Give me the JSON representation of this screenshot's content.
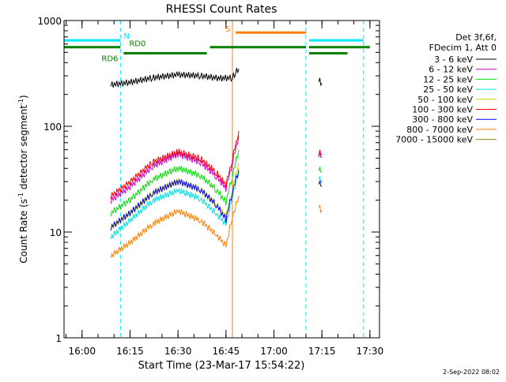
{
  "chart_data": {
    "type": "line",
    "title": "RHESSI Count Rates",
    "xlabel": "Start Time (23-Mar-17 15:54:22)",
    "ylabel": "Count Rate (s⁻¹ detector segment⁻¹)",
    "ylabel_main": "Count Rate (s",
    "ylabel_sup1": "-1",
    "ylabel_mid": " detector segment",
    "ylabel_sup2": "-1",
    "ylabel_end": ")",
    "y_scale": "log",
    "ylim": [
      1,
      1000
    ],
    "xlim": [
      "15:54:22",
      "17:33:00"
    ],
    "x_ticks": [
      "16:00",
      "16:15",
      "16:30",
      "16:45",
      "17:00",
      "17:15",
      "17:30"
    ],
    "y_ticks": [
      "1",
      "10",
      "100",
      "1000"
    ],
    "legend_header": [
      "Det 3f,6f,",
      "FDecim 1, Att 0"
    ],
    "legend_position": "right",
    "footer": "2-Sep-2022 08:02",
    "series": [
      {
        "name": "3 - 6 keV",
        "color": "#000000",
        "x": [
          "16:09",
          "16:15",
          "16:22",
          "16:30",
          "16:37",
          "16:43",
          "16:47",
          "16:48",
          "16:49",
          "17:14",
          "17:15"
        ],
        "y": [
          245,
          258,
          285,
          305,
          298,
          282,
          285,
          320,
          350,
          270,
          255
        ]
      },
      {
        "name": "6 - 12 keV",
        "color": "#d000d0",
        "x": [
          "16:09",
          "16:15",
          "16:22",
          "16:30",
          "16:37",
          "16:42",
          "16:45",
          "16:47",
          "16:49",
          "17:14",
          "17:15"
        ],
        "y": [
          20,
          27,
          42,
          55,
          46,
          34,
          26,
          46,
          82,
          55,
          52
        ]
      },
      {
        "name": "12 - 25 keV",
        "color": "#00e000",
        "x": [
          "16:09",
          "16:15",
          "16:22",
          "16:30",
          "16:37",
          "16:42",
          "16:45",
          "16:47",
          "16:49",
          "17:14",
          "17:15"
        ],
        "y": [
          15,
          20,
          31,
          40,
          34,
          25,
          19,
          34,
          60,
          40,
          37
        ]
      },
      {
        "name": "25 - 50 keV",
        "color": "#00e0e0",
        "x": [
          "16:09",
          "16:15",
          "16:22",
          "16:30",
          "16:37",
          "16:42",
          "16:45",
          "16:47",
          "16:49",
          "17:14",
          "17:15"
        ],
        "y": [
          9,
          13,
          20,
          25,
          21,
          15,
          12,
          22,
          40,
          33,
          31
        ]
      },
      {
        "name": "50 - 100 keV",
        "color": "#d0d000",
        "x": [
          "16:09",
          "16:15",
          "16:22",
          "16:30",
          "16:37",
          "16:42",
          "16:45",
          "16:47",
          "16:49"
        ],
        "y": [
          11,
          15,
          23,
          30,
          25,
          18,
          14,
          25,
          45
        ]
      },
      {
        "name": "100 - 300 keV",
        "color": "#ff0000",
        "x": [
          "16:09",
          "16:15",
          "16:22",
          "16:30",
          "16:37",
          "16:42",
          "16:45",
          "16:47",
          "16:49",
          "17:14",
          "17:15"
        ],
        "y": [
          22,
          30,
          46,
          58,
          50,
          37,
          28,
          50,
          90,
          57,
          55
        ]
      },
      {
        "name": "300 - 800 keV",
        "color": "#0000ff",
        "x": [
          "16:09",
          "16:15",
          "16:22",
          "16:30",
          "16:37",
          "16:42",
          "16:45",
          "16:47",
          "16:49",
          "17:14",
          "17:15"
        ],
        "y": [
          11,
          15,
          23,
          30,
          25,
          18,
          13,
          24,
          38,
          30,
          27
        ]
      },
      {
        "name": "800 - 7000 keV",
        "color": "#ff8000",
        "x": [
          "16:09",
          "16:15",
          "16:22",
          "16:30",
          "16:37",
          "16:42",
          "16:45",
          "16:47",
          "16:49",
          "17:14",
          "17:15"
        ],
        "y": [
          6,
          8,
          12,
          16,
          13,
          9.5,
          7.5,
          14,
          22,
          18,
          16
        ]
      },
      {
        "name": "7000 - 15000 keV",
        "color": "#808000",
        "x": [],
        "y": []
      }
    ],
    "flag_bars": [
      {
        "label": "N",
        "color": "#00e8ff",
        "level": 650,
        "segments": [
          [
            "15:54:22",
            "16:12"
          ],
          [
            "17:11",
            "17:28"
          ]
        ]
      },
      {
        "label": "S",
        "color": "#ff8000",
        "level": 770,
        "segments": [
          [
            "16:48",
            "17:10"
          ]
        ]
      },
      {
        "label": "RD0",
        "color": "#008000",
        "level": 560,
        "segments": [
          [
            "15:54:22",
            "16:12"
          ],
          [
            "16:40",
            "17:10"
          ],
          [
            "17:11",
            "17:30"
          ]
        ]
      },
      {
        "label": "RD6",
        "color": "#008000",
        "level": 490,
        "segments": [
          [
            "16:13",
            "16:39"
          ],
          [
            "17:11",
            "17:23"
          ]
        ]
      }
    ],
    "vertical_lines": [
      {
        "x": "15:54:22",
        "color": "#00e8ff",
        "style": "dashed"
      },
      {
        "x": "16:12",
        "color": "#00e8ff",
        "style": "dashed"
      },
      {
        "x": "16:47",
        "color": "#ff8000",
        "style": "solid"
      },
      {
        "x": "17:10",
        "color": "#00e8ff",
        "style": "dashed"
      },
      {
        "x": "17:28",
        "color": "#00e8ff",
        "style": "dashed"
      }
    ]
  }
}
